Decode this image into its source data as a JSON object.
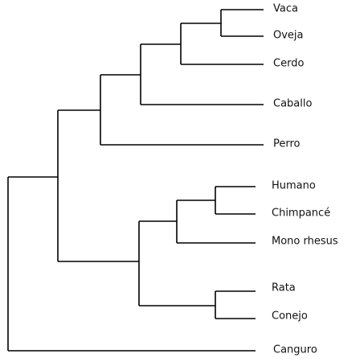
{
  "leaves": [
    "Vaca",
    "Oveja",
    "Cerdo",
    "Caballo",
    "Perro",
    "Humano",
    "Chimpancé",
    "Mono rhesus",
    "Rata",
    "Conejo",
    "Canguro"
  ]
}
